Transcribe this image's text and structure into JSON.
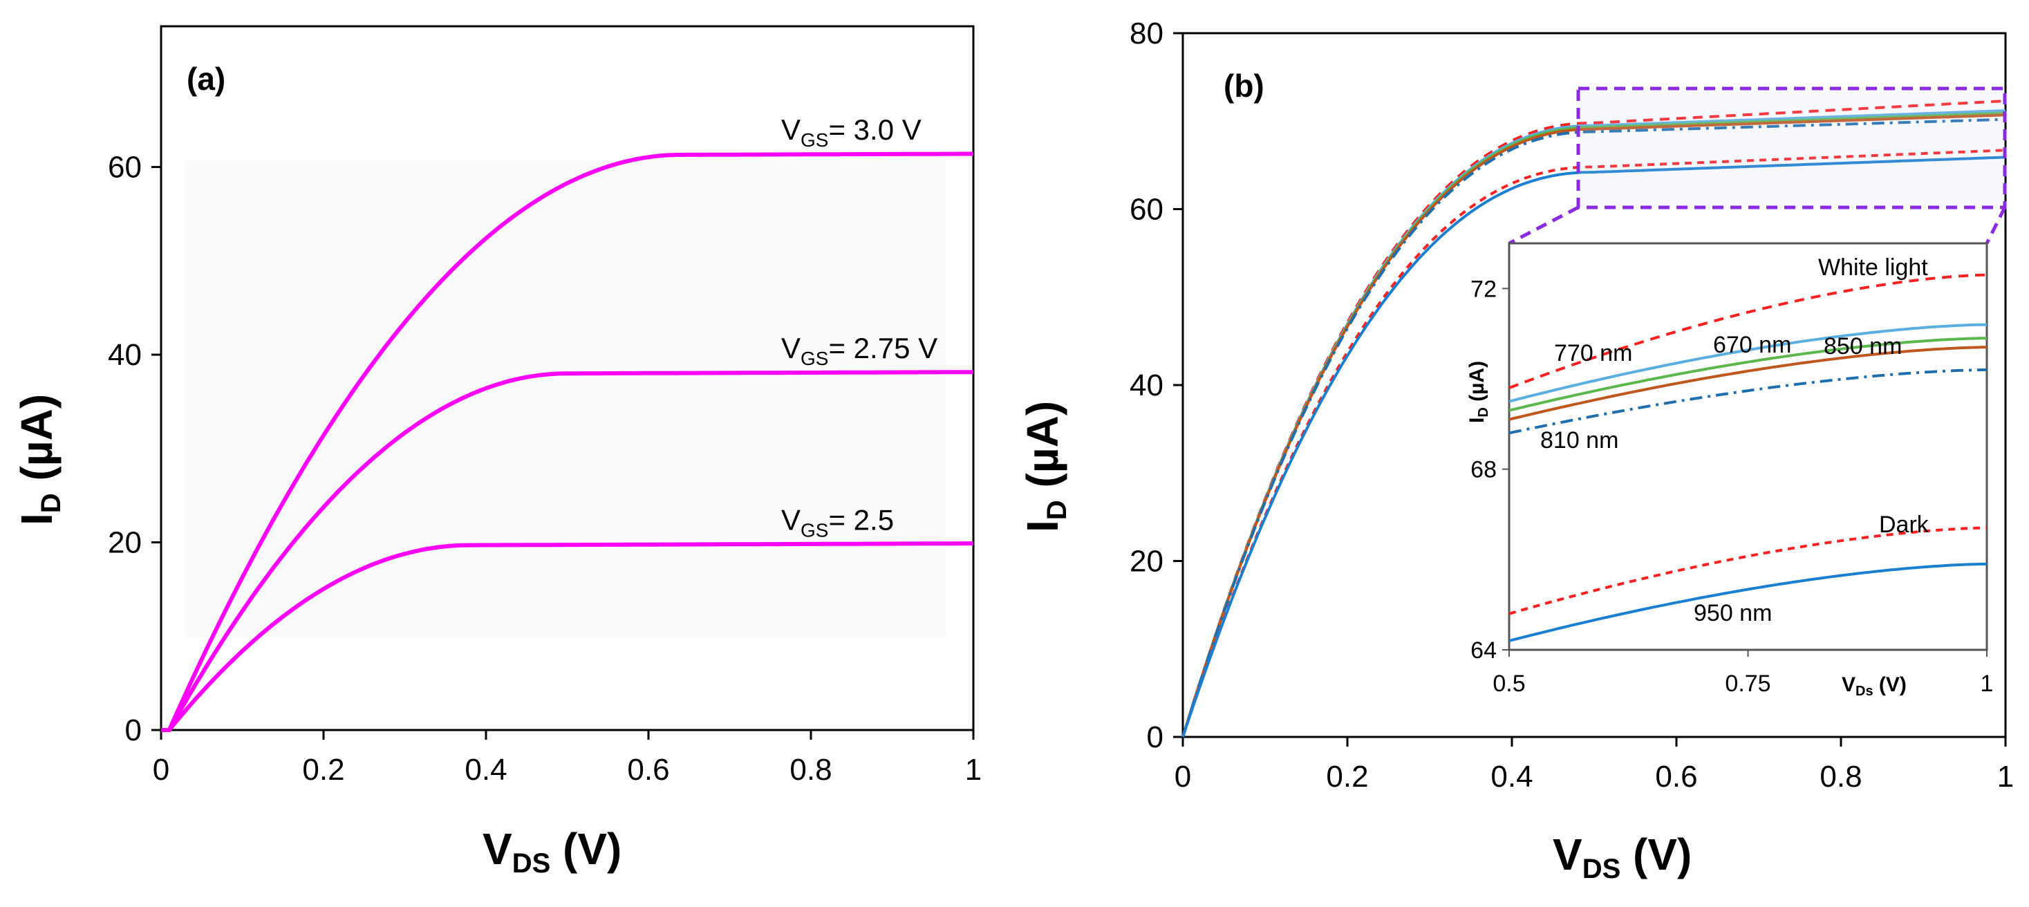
{
  "chart_data": [
    {
      "panel": "(a)",
      "type": "line",
      "xlabel": "V",
      "xlabel_sub": "DS",
      "xlabel_unit": " (V)",
      "ylabel": "I",
      "ylabel_sub": "D",
      "ylabel_unit": " (µA)",
      "xlim": [
        0,
        1
      ],
      "ylim": [
        0,
        75
      ],
      "xticks": [
        "0",
        "0.2",
        "0.4",
        "0.6",
        "0.8",
        "1"
      ],
      "yticks": [
        "0",
        "20",
        "40",
        "60"
      ],
      "grid": false,
      "series_color": "#ff00ff",
      "series": [
        {
          "name": "VGS = 3.0 V",
          "label_main": "V",
          "label_sub": "GS",
          "label_rest": "= 3.0 V",
          "x_sat": 0.64,
          "i_sat": 61.3
        },
        {
          "name": "VGS = 2.75 V",
          "label_main": "V",
          "label_sub": "GS",
          "label_rest": "= 2.75 V",
          "x_sat": 0.5,
          "i_sat": 38.0
        },
        {
          "name": "VGS = 2.5",
          "label_main": "V",
          "label_sub": "GS",
          "label_rest": "= 2.5",
          "x_sat": 0.38,
          "i_sat": 19.7
        }
      ]
    },
    {
      "panel": "(b)",
      "type": "line",
      "xlabel": "V",
      "xlabel_sub": "DS",
      "xlabel_unit": " (V)",
      "ylabel": "I",
      "ylabel_sub": "D",
      "ylabel_unit": " (µA)",
      "xlim": [
        0,
        1
      ],
      "ylim": [
        0,
        80
      ],
      "xticks": [
        "0",
        "0.2",
        "0.4",
        "0.6",
        "0.8",
        "1"
      ],
      "yticks": [
        "0",
        "20",
        "40",
        "60",
        "80"
      ],
      "grid": false,
      "series": [
        {
          "name": "White light",
          "color": "#ff2020",
          "dash": "14,10",
          "i05": 69.8,
          "i1": 72.3
        },
        {
          "name": "770 nm",
          "color": "#5aaee0",
          "dash": "",
          "i05": 69.5,
          "i1": 71.2
        },
        {
          "name": "670 nm",
          "color": "#5cb84c",
          "dash": "",
          "i05": 69.3,
          "i1": 70.9
        },
        {
          "name": "850 nm",
          "color": "#c0571e",
          "dash": "",
          "i05": 69.1,
          "i1": 70.7
        },
        {
          "name": "810 nm",
          "color": "#1f6fae",
          "dash": "18,8,4,8",
          "i05": 68.8,
          "i1": 70.2
        },
        {
          "name": "Dark",
          "color": "#ff2020",
          "dash": "10,8",
          "i05": 64.8,
          "i1": 66.7
        },
        {
          "name": "950  nm",
          "color": "#1a7fd0",
          "dash": "",
          "i05": 64.2,
          "i1": 65.9
        }
      ],
      "inset": {
        "xlim": [
          0.5,
          1
        ],
        "ylim": [
          64,
          73
        ],
        "xticks": [
          "0.5",
          "0.75",
          "1"
        ],
        "yticks": [
          "64",
          "68",
          "72"
        ],
        "xlabel": "V",
        "xlabel_sub": "Ds",
        "xlabel_unit": " (V)",
        "ylabel": "I",
        "ylabel_sub": "D",
        "ylabel_unit": " (µA)"
      }
    }
  ]
}
